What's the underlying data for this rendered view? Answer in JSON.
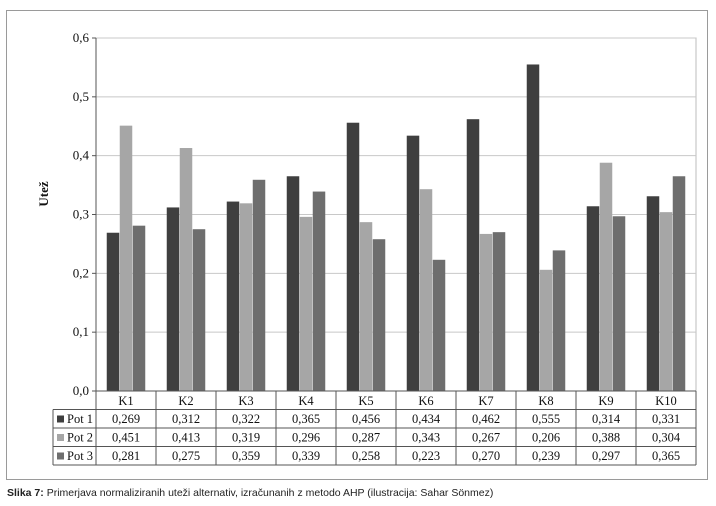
{
  "chart_data": {
    "type": "bar",
    "ylabel": "Utež",
    "ylim": [
      0,
      0.6
    ],
    "yticks": [
      "0,0",
      "0,1",
      "0,2",
      "0,3",
      "0,4",
      "0,5",
      "0,6"
    ],
    "grid": true,
    "categories": [
      "K1",
      "K2",
      "K3",
      "K4",
      "K5",
      "K6",
      "K7",
      "K8",
      "K9",
      "K10"
    ],
    "series": [
      {
        "name": "Pot 1",
        "color": "#3f3f3f",
        "values": [
          0.269,
          0.312,
          0.322,
          0.365,
          0.456,
          0.434,
          0.462,
          0.555,
          0.314,
          0.331
        ],
        "labels": [
          "0,269",
          "0,312",
          "0,322",
          "0,365",
          "0,456",
          "0,434",
          "0,462",
          "0,555",
          "0,314",
          "0,331"
        ]
      },
      {
        "name": "Pot 2",
        "color": "#a6a6a6",
        "values": [
          0.451,
          0.413,
          0.319,
          0.296,
          0.287,
          0.343,
          0.267,
          0.206,
          0.388,
          0.304
        ],
        "labels": [
          "0,451",
          "0,413",
          "0,319",
          "0,296",
          "0,287",
          "0,343",
          "0,267",
          "0,206",
          "0,388",
          "0,304"
        ]
      },
      {
        "name": "Pot 3",
        "color": "#6e6e6e",
        "values": [
          0.281,
          0.275,
          0.359,
          0.339,
          0.258,
          0.223,
          0.27,
          0.239,
          0.297,
          0.365
        ],
        "labels": [
          "0,281",
          "0,275",
          "0,359",
          "0,339",
          "0,258",
          "0,223",
          "0,270",
          "0,239",
          "0,297",
          "0,365"
        ]
      }
    ]
  },
  "caption": {
    "label": "Slika 7:",
    "text": " Primerjava normaliziranih uteži alternativ, izračunanih z metodo AHP (ilustracija: Sahar Sönmez)"
  }
}
